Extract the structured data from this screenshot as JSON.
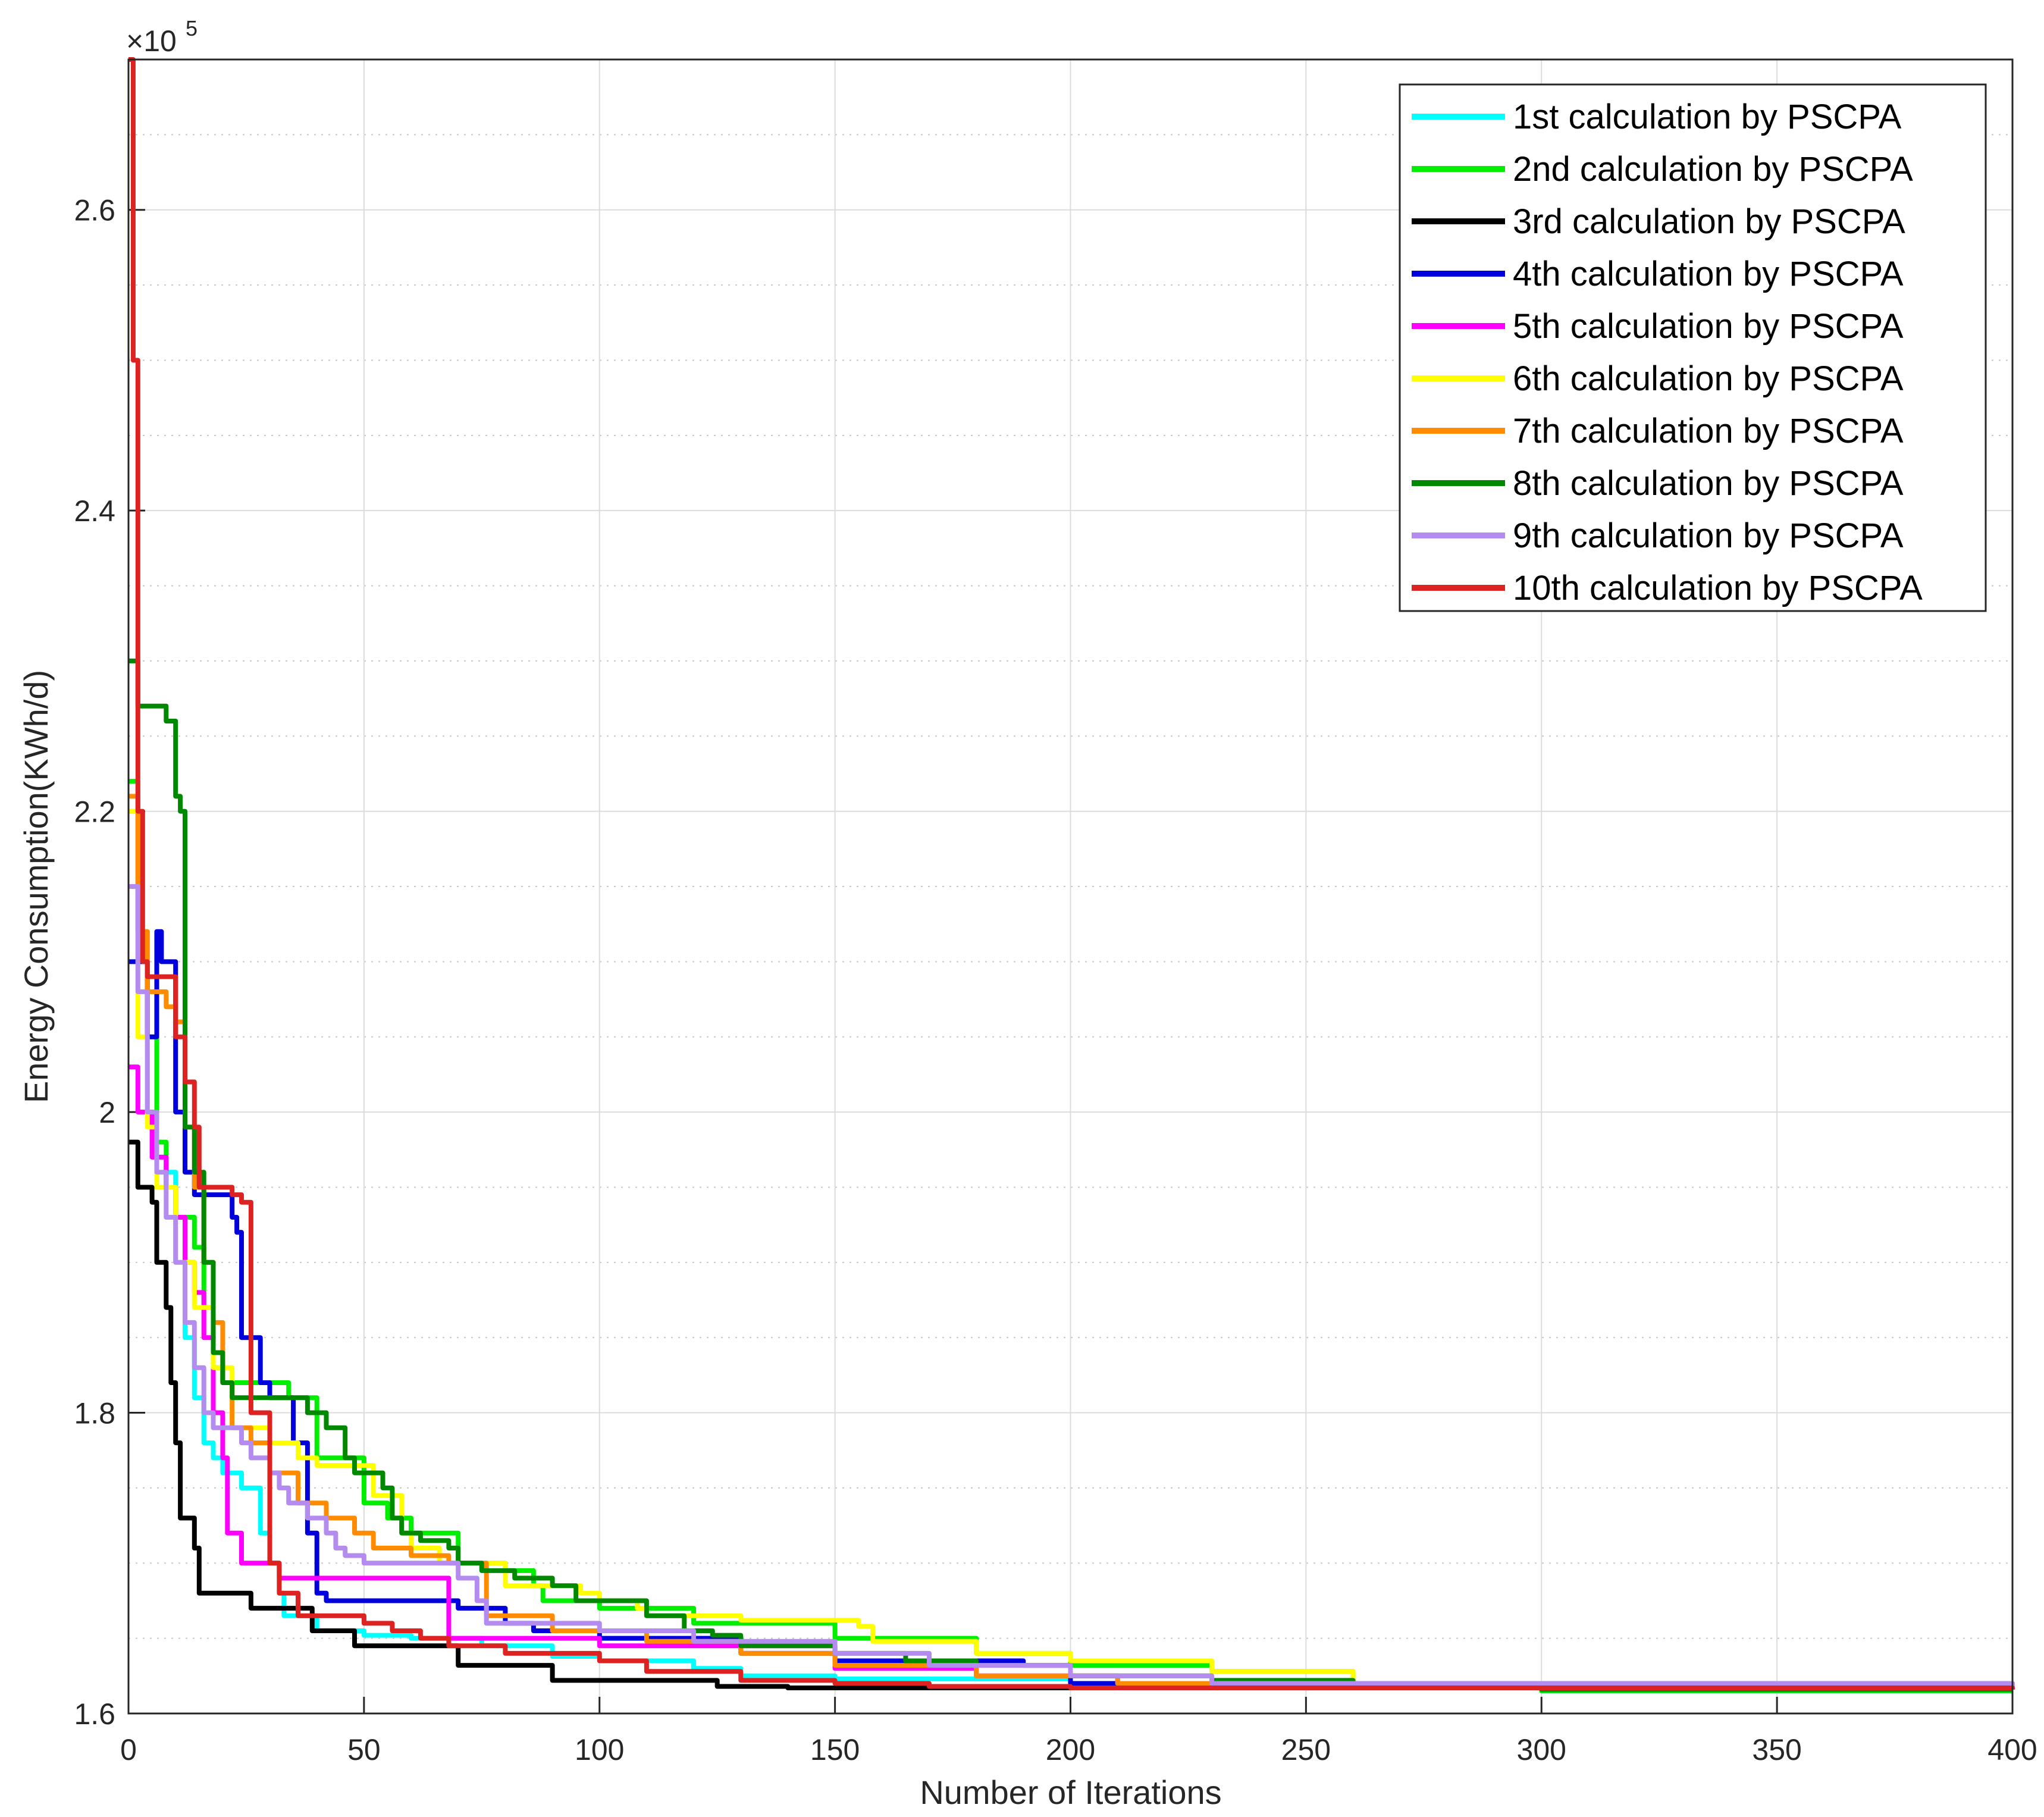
{
  "chart_data": {
    "type": "line",
    "title": "",
    "xlabel": "Number of Iterations",
    "ylabel": "Energy Consumption(KWh/d)",
    "y_exponent_label": "×10",
    "y_exponent_power": "5",
    "xlim": [
      0,
      400
    ],
    "ylim": [
      1.6,
      2.7
    ],
    "x_ticks": [
      0,
      50,
      100,
      150,
      200,
      250,
      300,
      350,
      400
    ],
    "x_tick_labels": [
      "0",
      "50",
      "100",
      "150",
      "200",
      "250",
      "300",
      "350",
      "400"
    ],
    "y_ticks": [
      1.6,
      1.8,
      2.0,
      2.2,
      2.4,
      2.6
    ],
    "y_tick_labels": [
      "1.6",
      "1.8",
      "2",
      "2.2",
      "2.4",
      "2.6"
    ],
    "grid": true,
    "minor_grid": true,
    "legend_position": "top-right",
    "series": [
      {
        "name": "1st calculation by PSCPA",
        "color": "#00FFFF",
        "points": [
          [
            0,
            2.2
          ],
          [
            2,
            2.1
          ],
          [
            4,
            2.0
          ],
          [
            6,
            1.97
          ],
          [
            8,
            1.96
          ],
          [
            10,
            1.93
          ],
          [
            12,
            1.85
          ],
          [
            14,
            1.81
          ],
          [
            16,
            1.78
          ],
          [
            18,
            1.77
          ],
          [
            20,
            1.76
          ],
          [
            24,
            1.75
          ],
          [
            28,
            1.72
          ],
          [
            30,
            1.7
          ],
          [
            32,
            1.68
          ],
          [
            33,
            1.665
          ],
          [
            36,
            1.665
          ],
          [
            40,
            1.655
          ],
          [
            50,
            1.652
          ],
          [
            60,
            1.65
          ],
          [
            75,
            1.645
          ],
          [
            90,
            1.638
          ],
          [
            100,
            1.635
          ],
          [
            120,
            1.63
          ],
          [
            130,
            1.625
          ],
          [
            150,
            1.623
          ],
          [
            200,
            1.62
          ],
          [
            250,
            1.617
          ],
          [
            300,
            1.615
          ],
          [
            400,
            1.615
          ]
        ]
      },
      {
        "name": "2nd calculation by PSCPA",
        "color": "#00EE00",
        "points": [
          [
            0,
            2.22
          ],
          [
            2,
            2.12
          ],
          [
            4,
            2.05
          ],
          [
            6,
            1.98
          ],
          [
            8,
            1.95
          ],
          [
            10,
            1.93
          ],
          [
            14,
            1.91
          ],
          [
            16,
            1.87
          ],
          [
            18,
            1.83
          ],
          [
            20,
            1.82
          ],
          [
            32,
            1.82
          ],
          [
            34,
            1.81
          ],
          [
            40,
            1.77
          ],
          [
            50,
            1.74
          ],
          [
            55,
            1.73
          ],
          [
            60,
            1.72
          ],
          [
            70,
            1.7
          ],
          [
            80,
            1.695
          ],
          [
            86,
            1.685
          ],
          [
            88,
            1.675
          ],
          [
            100,
            1.67
          ],
          [
            120,
            1.66
          ],
          [
            150,
            1.65
          ],
          [
            180,
            1.64
          ],
          [
            200,
            1.632
          ],
          [
            230,
            1.628
          ],
          [
            260,
            1.62
          ],
          [
            300,
            1.615
          ],
          [
            400,
            1.615
          ]
        ]
      },
      {
        "name": "3rd calculation by PSCPA",
        "color": "#000000",
        "points": [
          [
            0,
            1.98
          ],
          [
            2,
            1.95
          ],
          [
            5,
            1.94
          ],
          [
            6,
            1.9
          ],
          [
            8,
            1.87
          ],
          [
            9,
            1.82
          ],
          [
            10,
            1.78
          ],
          [
            11,
            1.73
          ],
          [
            14,
            1.71
          ],
          [
            15,
            1.68
          ],
          [
            25,
            1.68
          ],
          [
            26,
            1.67
          ],
          [
            38,
            1.67
          ],
          [
            39,
            1.655
          ],
          [
            47,
            1.655
          ],
          [
            48,
            1.645
          ],
          [
            68,
            1.645
          ],
          [
            70,
            1.632
          ],
          [
            86,
            1.632
          ],
          [
            90,
            1.622
          ],
          [
            125,
            1.618
          ],
          [
            140,
            1.617
          ],
          [
            400,
            1.616
          ]
        ]
      },
      {
        "name": "4th calculation by PSCPA",
        "color": "#0000DD",
        "points": [
          [
            0,
            2.1
          ],
          [
            4,
            2.05
          ],
          [
            6,
            2.12
          ],
          [
            7,
            2.1
          ],
          [
            10,
            2.0
          ],
          [
            12,
            1.96
          ],
          [
            14,
            1.945
          ],
          [
            20,
            1.945
          ],
          [
            22,
            1.93
          ],
          [
            23,
            1.92
          ],
          [
            24,
            1.85
          ],
          [
            28,
            1.82
          ],
          [
            30,
            1.81
          ],
          [
            35,
            1.78
          ],
          [
            38,
            1.72
          ],
          [
            40,
            1.68
          ],
          [
            42,
            1.675
          ],
          [
            70,
            1.67
          ],
          [
            80,
            1.66
          ],
          [
            86,
            1.655
          ],
          [
            100,
            1.65
          ],
          [
            130,
            1.64
          ],
          [
            150,
            1.635
          ],
          [
            190,
            1.632
          ],
          [
            200,
            1.62
          ],
          [
            210,
            1.618
          ],
          [
            400,
            1.616
          ]
        ]
      },
      {
        "name": "5th calculation by PSCPA",
        "color": "#FF00FF",
        "points": [
          [
            0,
            2.03
          ],
          [
            2,
            2.0
          ],
          [
            5,
            1.97
          ],
          [
            8,
            1.95
          ],
          [
            10,
            1.93
          ],
          [
            12,
            1.9
          ],
          [
            14,
            1.88
          ],
          [
            16,
            1.85
          ],
          [
            18,
            1.8
          ],
          [
            20,
            1.77
          ],
          [
            21,
            1.72
          ],
          [
            24,
            1.7
          ],
          [
            30,
            1.7
          ],
          [
            32,
            1.69
          ],
          [
            40,
            1.69
          ],
          [
            66,
            1.69
          ],
          [
            68,
            1.65
          ],
          [
            100,
            1.645
          ],
          [
            150,
            1.63
          ],
          [
            180,
            1.625
          ],
          [
            210,
            1.62
          ],
          [
            400,
            1.616
          ]
        ]
      },
      {
        "name": "6th calculation by PSCPA",
        "color": "#FFFF00",
        "points": [
          [
            0,
            2.2
          ],
          [
            2,
            2.05
          ],
          [
            4,
            1.99
          ],
          [
            6,
            1.95
          ],
          [
            10,
            1.9
          ],
          [
            14,
            1.87
          ],
          [
            18,
            1.83
          ],
          [
            22,
            1.79
          ],
          [
            30,
            1.78
          ],
          [
            36,
            1.77
          ],
          [
            40,
            1.765
          ],
          [
            52,
            1.745
          ],
          [
            58,
            1.72
          ],
          [
            60,
            1.71
          ],
          [
            66,
            1.7
          ],
          [
            72,
            1.7
          ],
          [
            80,
            1.685
          ],
          [
            96,
            1.68
          ],
          [
            100,
            1.675
          ],
          [
            108,
            1.67
          ],
          [
            110,
            1.665
          ],
          [
            130,
            1.662
          ],
          [
            155,
            1.658
          ],
          [
            158,
            1.648
          ],
          [
            180,
            1.64
          ],
          [
            200,
            1.635
          ],
          [
            230,
            1.628
          ],
          [
            260,
            1.62
          ],
          [
            300,
            1.616
          ],
          [
            400,
            1.616
          ]
        ]
      },
      {
        "name": "7th calculation by PSCPA",
        "color": "#FF8C00",
        "points": [
          [
            0,
            2.21
          ],
          [
            2,
            2.12
          ],
          [
            4,
            2.08
          ],
          [
            6,
            2.08
          ],
          [
            8,
            2.07
          ],
          [
            10,
            2.06
          ],
          [
            12,
            1.99
          ],
          [
            14,
            1.95
          ],
          [
            16,
            1.9
          ],
          [
            18,
            1.86
          ],
          [
            20,
            1.82
          ],
          [
            22,
            1.79
          ],
          [
            26,
            1.78
          ],
          [
            30,
            1.76
          ],
          [
            36,
            1.74
          ],
          [
            42,
            1.73
          ],
          [
            48,
            1.72
          ],
          [
            52,
            1.71
          ],
          [
            60,
            1.705
          ],
          [
            68,
            1.7
          ],
          [
            76,
            1.665
          ],
          [
            90,
            1.655
          ],
          [
            110,
            1.648
          ],
          [
            130,
            1.64
          ],
          [
            150,
            1.632
          ],
          [
            180,
            1.625
          ],
          [
            210,
            1.62
          ],
          [
            400,
            1.616
          ]
        ]
      },
      {
        "name": "8th calculation by PSCPA",
        "color": "#008800",
        "points": [
          [
            0,
            2.3
          ],
          [
            2,
            2.27
          ],
          [
            6,
            2.27
          ],
          [
            8,
            2.26
          ],
          [
            10,
            2.21
          ],
          [
            11,
            2.2
          ],
          [
            12,
            1.99
          ],
          [
            14,
            1.96
          ],
          [
            16,
            1.9
          ],
          [
            18,
            1.84
          ],
          [
            20,
            1.82
          ],
          [
            22,
            1.81
          ],
          [
            35,
            1.81
          ],
          [
            38,
            1.8
          ],
          [
            42,
            1.79
          ],
          [
            46,
            1.77
          ],
          [
            48,
            1.76
          ],
          [
            52,
            1.76
          ],
          [
            54,
            1.75
          ],
          [
            56,
            1.73
          ],
          [
            58,
            1.72
          ],
          [
            62,
            1.715
          ],
          [
            68,
            1.71
          ],
          [
            70,
            1.7
          ],
          [
            75,
            1.695
          ],
          [
            82,
            1.69
          ],
          [
            90,
            1.685
          ],
          [
            95,
            1.675
          ],
          [
            110,
            1.665
          ],
          [
            118,
            1.655
          ],
          [
            124,
            1.652
          ],
          [
            130,
            1.645
          ],
          [
            140,
            1.645
          ],
          [
            150,
            1.64
          ],
          [
            165,
            1.635
          ],
          [
            180,
            1.632
          ],
          [
            200,
            1.625
          ],
          [
            230,
            1.622
          ],
          [
            260,
            1.62
          ],
          [
            300,
            1.616
          ],
          [
            400,
            1.616
          ]
        ]
      },
      {
        "name": "9th calculation by PSCPA",
        "color": "#B48CF0",
        "points": [
          [
            0,
            2.15
          ],
          [
            2,
            2.08
          ],
          [
            4,
            2.0
          ],
          [
            6,
            1.96
          ],
          [
            8,
            1.93
          ],
          [
            10,
            1.9
          ],
          [
            12,
            1.86
          ],
          [
            14,
            1.83
          ],
          [
            16,
            1.8
          ],
          [
            18,
            1.79
          ],
          [
            24,
            1.78
          ],
          [
            26,
            1.77
          ],
          [
            30,
            1.76
          ],
          [
            32,
            1.75
          ],
          [
            34,
            1.74
          ],
          [
            38,
            1.73
          ],
          [
            42,
            1.72
          ],
          [
            44,
            1.71
          ],
          [
            46,
            1.705
          ],
          [
            50,
            1.7
          ],
          [
            66,
            1.7
          ],
          [
            70,
            1.69
          ],
          [
            74,
            1.675
          ],
          [
            76,
            1.66
          ],
          [
            100,
            1.655
          ],
          [
            120,
            1.648
          ],
          [
            150,
            1.64
          ],
          [
            170,
            1.632
          ],
          [
            200,
            1.625
          ],
          [
            230,
            1.62
          ],
          [
            400,
            1.616
          ]
        ]
      },
      {
        "name": "10th calculation by PSCPA",
        "color": "#DD2222",
        "points": [
          [
            0,
            2.7
          ],
          [
            1,
            2.5
          ],
          [
            2,
            2.2
          ],
          [
            3,
            2.1
          ],
          [
            4,
            2.09
          ],
          [
            8,
            2.09
          ],
          [
            10,
            2.05
          ],
          [
            12,
            2.02
          ],
          [
            14,
            1.99
          ],
          [
            15,
            1.95
          ],
          [
            22,
            1.945
          ],
          [
            24,
            1.94
          ],
          [
            26,
            1.8
          ],
          [
            30,
            1.7
          ],
          [
            32,
            1.68
          ],
          [
            36,
            1.665
          ],
          [
            50,
            1.66
          ],
          [
            56,
            1.655
          ],
          [
            60,
            1.655
          ],
          [
            62,
            1.65
          ],
          [
            66,
            1.65
          ],
          [
            68,
            1.645
          ],
          [
            80,
            1.64
          ],
          [
            100,
            1.635
          ],
          [
            110,
            1.628
          ],
          [
            130,
            1.622
          ],
          [
            150,
            1.62
          ],
          [
            170,
            1.618
          ],
          [
            200,
            1.617
          ],
          [
            400,
            1.616
          ]
        ]
      }
    ]
  }
}
